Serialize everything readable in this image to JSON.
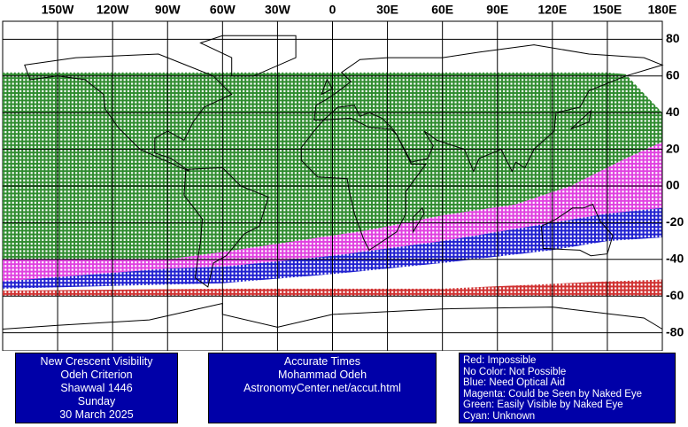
{
  "map": {
    "longitude_labels": [
      "150W",
      "120W",
      "90W",
      "60W",
      "30W",
      "0",
      "30E",
      "60E",
      "90E",
      "120E",
      "150E",
      "180E"
    ],
    "latitude_labels": [
      "80",
      "60",
      "40",
      "20",
      "00",
      "-20",
      "-40",
      "-60",
      "-80"
    ]
  },
  "info_boxes": [
    {
      "lines": [
        "New Crescent Visibility",
        "Odeh Criterion",
        "Shawwal 1446",
        "Sunday",
        "30 March 2025"
      ]
    },
    {
      "lines": [
        "Accurate Times",
        "Mohammad Odeh",
        "AstronomyCenter.net/accut.html"
      ]
    },
    {
      "lines": [
        "Red: Impossible",
        "No Color: Not Possible",
        "Blue: Need Optical Aid",
        "Magenta: Could be Seen by Naked Eye",
        "Green: Easily Visible by Naked Eye",
        "Cyan: Unknown"
      ]
    }
  ]
}
